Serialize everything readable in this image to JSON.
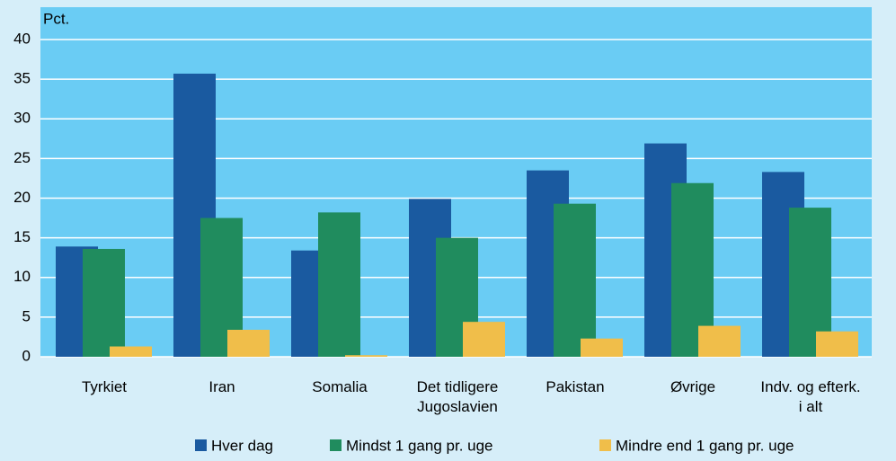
{
  "chart_data": {
    "type": "bar",
    "y_label": "Pct.",
    "categories": [
      "Tyrkiet",
      "Iran",
      "Somalia",
      "Det tidligere\nJugoslavien",
      "Pakistan",
      "Øvrige",
      "Indv. og efterk.\ni alt"
    ],
    "series": [
      {
        "name": "Hver dag",
        "color": "#1a5aa0",
        "values": [
          13.9,
          35.7,
          13.4,
          19.9,
          23.5,
          26.9,
          23.3
        ]
      },
      {
        "name": "Mindst 1 gang pr. uge",
        "color": "#208c5e",
        "values": [
          13.6,
          17.5,
          18.2,
          15.0,
          19.3,
          21.9,
          18.8
        ]
      },
      {
        "name": "Mindre end 1 gang pr. uge",
        "color": "#f0be4a",
        "values": [
          1.3,
          3.4,
          0.2,
          4.4,
          2.3,
          3.9,
          3.2
        ]
      }
    ],
    "ylim": [
      0,
      40
    ],
    "yticks": [
      0,
      5,
      10,
      15,
      20,
      25,
      30,
      35,
      40
    ],
    "grid": true
  }
}
